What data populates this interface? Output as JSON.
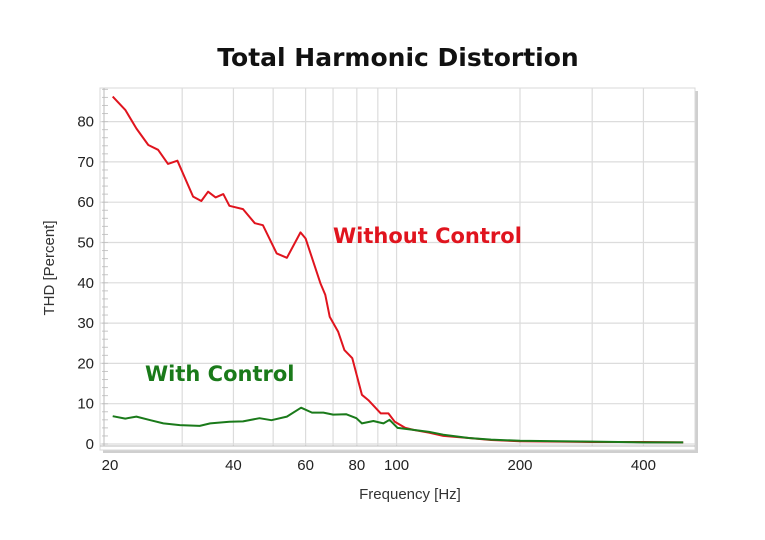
{
  "chart_data": {
    "type": "line",
    "title": "Total Harmonic Distortion",
    "xlabel": "Frequency [Hz]",
    "ylabel": "THD [Percent]",
    "xscale": "log",
    "xlim": [
      20,
      535
    ],
    "ylim": [
      0,
      88
    ],
    "grid": true,
    "x_ticks": [
      20,
      40,
      60,
      80,
      100,
      200,
      400
    ],
    "x_tick_labels": [
      "20",
      "40",
      "60",
      "80",
      "100",
      "200",
      "400"
    ],
    "x_gridlines": [
      30,
      40,
      50,
      60,
      70,
      80,
      90,
      100,
      200,
      300,
      400
    ],
    "y_ticks": [
      0,
      10,
      20,
      30,
      40,
      50,
      60,
      70,
      80
    ],
    "y_tick_labels": [
      "0",
      "10",
      "20",
      "30",
      "40",
      "50",
      "60",
      "70",
      "80"
    ],
    "series": [
      {
        "name": "Without Control",
        "color": "#e0141e",
        "x": [
          20.3,
          21.8,
          23.2,
          24.8,
          26.2,
          27.7,
          29.2,
          31.9,
          33.4,
          34.7,
          36.2,
          37.8,
          39.1,
          42.2,
          45.1,
          47.2,
          51,
          54,
          58.3,
          60,
          65.2,
          67,
          68.7,
          72,
          74.6,
          78,
          82.3,
          85.3,
          91.5,
          95.5,
          99,
          105,
          110,
          120,
          130,
          150,
          170,
          200,
          250,
          300,
          400,
          500
        ],
        "y": [
          86.2,
          82.9,
          78.3,
          74.2,
          73,
          69.5,
          70.3,
          61.4,
          60.3,
          62.6,
          61.2,
          62,
          59.1,
          58.3,
          54.8,
          54.3,
          47.3,
          46.2,
          52.5,
          51,
          39.9,
          37,
          31.6,
          27.9,
          23.3,
          21.3,
          12.2,
          10.9,
          7.6,
          7.6,
          5.5,
          4.0,
          3.5,
          2.8,
          2.0,
          1.5,
          1.0,
          0.7,
          0.6,
          0.5,
          0.5,
          0.4
        ]
      },
      {
        "name": "With Control",
        "color": "#1a7a1a",
        "x": [
          20.3,
          21.8,
          23.2,
          25.1,
          27,
          29.6,
          33.1,
          35.1,
          39.1,
          42.2,
          46.3,
          49.5,
          54,
          58.5,
          62.2,
          66.3,
          70,
          75.3,
          79.8,
          82.3,
          87.8,
          92.9,
          96.1,
          100.6,
          110,
          120,
          130,
          150,
          170,
          200,
          250,
          300,
          400,
          500
        ],
        "y": [
          6.9,
          6.3,
          6.8,
          5.9,
          5.1,
          4.7,
          4.5,
          5.1,
          5.5,
          5.6,
          6.4,
          5.9,
          6.8,
          9.0,
          7.8,
          7.8,
          7.3,
          7.4,
          6.4,
          5.1,
          5.7,
          5.1,
          6.0,
          4.0,
          3.5,
          3.0,
          2.3,
          1.5,
          1.1,
          0.8,
          0.7,
          0.6,
          0.4,
          0.4
        ]
      }
    ],
    "annotations": [
      {
        "text": "Without Control",
        "color": "#e0141e"
      },
      {
        "text": "With Control",
        "color": "#1a7a1a"
      }
    ]
  }
}
